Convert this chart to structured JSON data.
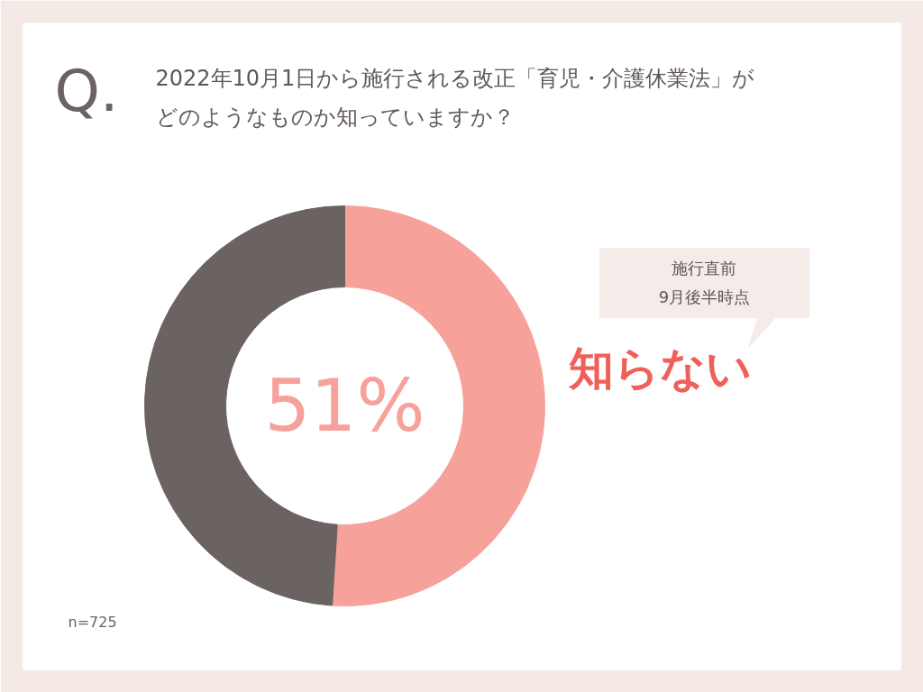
{
  "chart_data": {
    "type": "donut",
    "title": "2022年10月1日から施行される改正「育児・介護休業法」がどのようなものか知っていますか？",
    "categories": [
      "知らない",
      null
    ],
    "values": [
      51,
      49
    ],
    "colors": [
      "#f6a19a",
      "#6b6361"
    ],
    "value_labels": [
      "51%",
      null
    ],
    "annotations": [
      "Q.",
      "施行直前\n9月後半時点",
      "n=725"
    ]
  }
}
